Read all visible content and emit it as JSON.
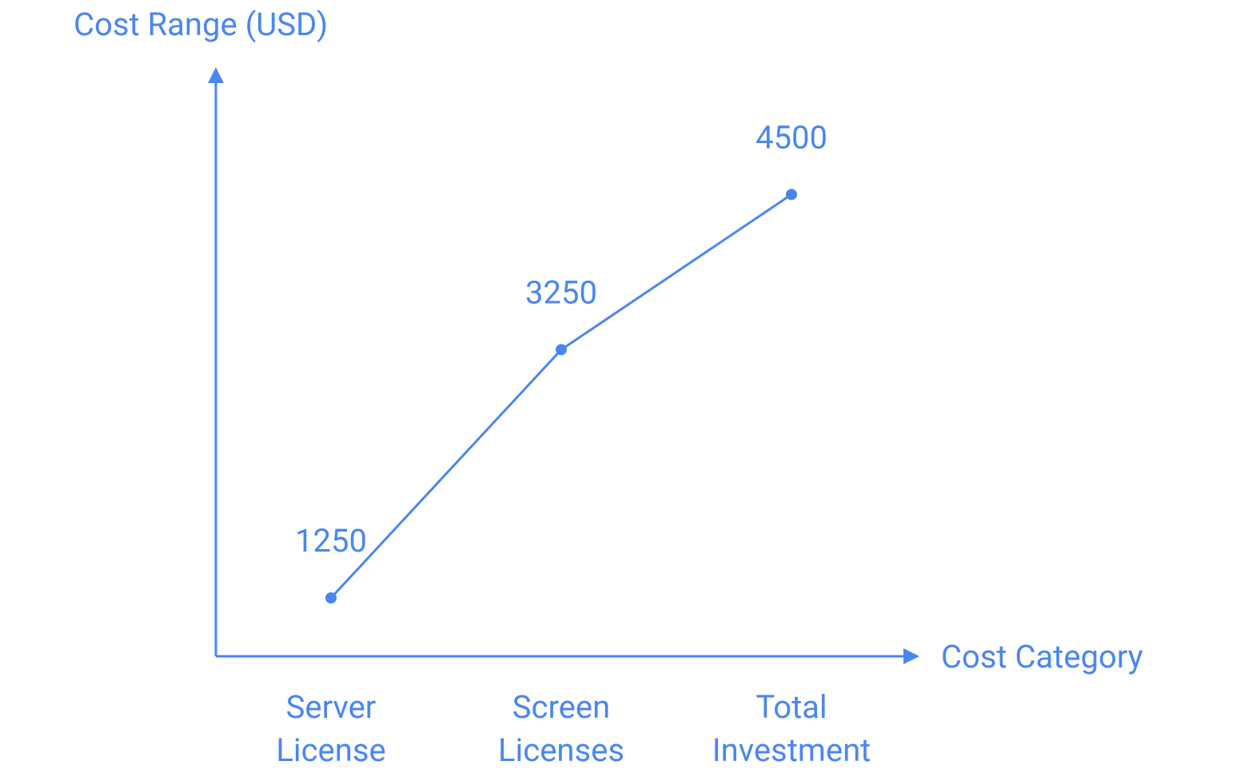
{
  "chart_data": {
    "type": "line",
    "y_label": "Cost Range (USD)",
    "x_label": "Cost Category",
    "categories": [
      "Server License",
      "Screen Licenses",
      "Total Investment"
    ],
    "values": [
      1250,
      3250,
      4500
    ],
    "color": "#4a86f0",
    "ylim": [
      780,
      5500
    ],
    "grid": false,
    "data_labels": true
  }
}
